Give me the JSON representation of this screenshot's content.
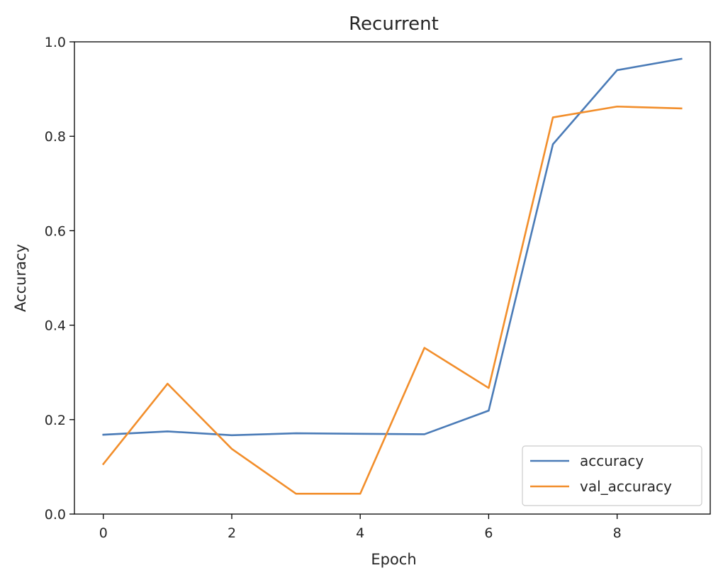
{
  "chart_data": {
    "type": "line",
    "title": "Recurrent",
    "xlabel": "Epoch",
    "ylabel": "Accuracy",
    "x": [
      0,
      1,
      2,
      3,
      4,
      5,
      6,
      7,
      8,
      9
    ],
    "xlim": [
      -0.45,
      9.45
    ],
    "ylim": [
      0.0,
      1.0
    ],
    "xticks": [
      "0",
      "2",
      "4",
      "6",
      "8"
    ],
    "yticks": [
      "0.0",
      "0.2",
      "0.4",
      "0.6",
      "0.8",
      "1.0"
    ],
    "grid": false,
    "legend_position": "lower-right",
    "series": [
      {
        "name": "accuracy",
        "color": "#4a7bb7",
        "values": [
          0.168,
          0.175,
          0.167,
          0.171,
          0.17,
          0.169,
          0.219,
          0.783,
          0.94,
          0.964
        ]
      },
      {
        "name": "val_accuracy",
        "color": "#f28e2b",
        "values": [
          0.106,
          0.276,
          0.138,
          0.043,
          0.043,
          0.352,
          0.267,
          0.84,
          0.863,
          0.859
        ]
      }
    ]
  }
}
